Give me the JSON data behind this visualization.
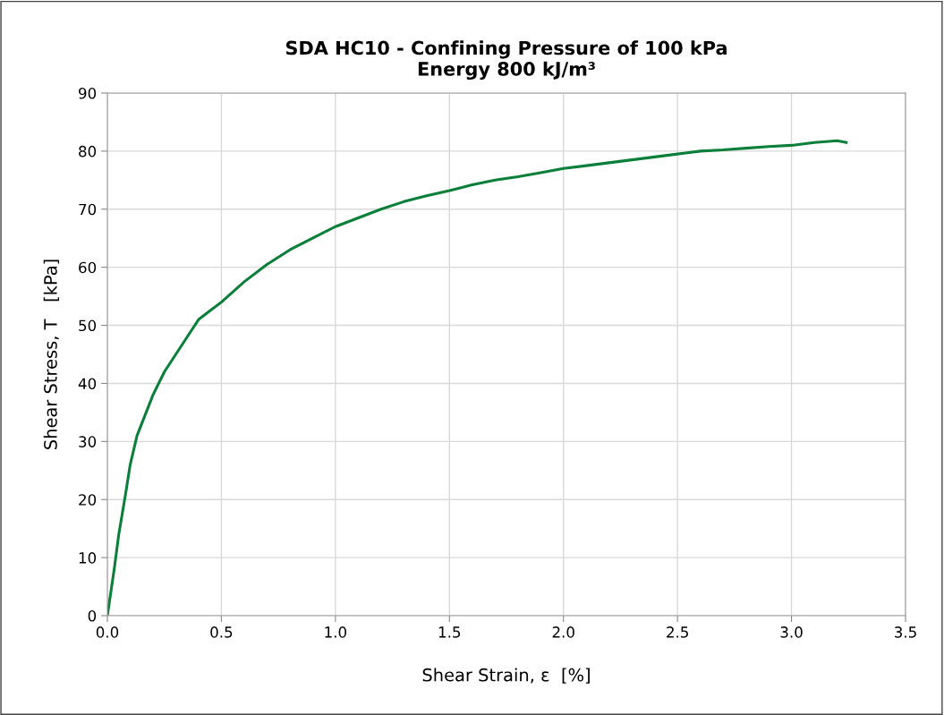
{
  "chart_data": {
    "type": "line",
    "title": "SDA HC10 - Confining Pressure of 100 kPa\nEnergy 800 kJ/m³",
    "xlabel": "Shear Strain, ε  [%]",
    "ylabel": "Shear Stress, T   [kPa]",
    "series": [
      {
        "color": "#0a7f3a",
        "x": [
          0,
          0.03,
          0.05,
          0.08,
          0.1,
          0.13,
          0.16,
          0.2,
          0.25,
          0.3,
          0.35,
          0.4,
          0.45,
          0.5,
          0.6,
          0.7,
          0.8,
          0.9,
          1.0,
          1.1,
          1.2,
          1.3,
          1.4,
          1.5,
          1.6,
          1.7,
          1.8,
          1.9,
          2.0,
          2.1,
          2.2,
          2.3,
          2.4,
          2.5,
          2.6,
          2.7,
          2.8,
          2.9,
          3.0,
          3.1,
          3.2,
          3.24
        ],
        "values": [
          0,
          8,
          14,
          21,
          26,
          31,
          34,
          38,
          42,
          45,
          48,
          51,
          52.5,
          54,
          57.5,
          60.5,
          63,
          65,
          67,
          68.5,
          70,
          71.3,
          72.3,
          73.2,
          74.2,
          75,
          75.6,
          76.3,
          77,
          77.5,
          78,
          78.5,
          79,
          79.5,
          80,
          80.2,
          80.5,
          80.8,
          81,
          81.5,
          81.8,
          81.5
        ]
      }
    ],
    "xlim": [
      0,
      3.5
    ],
    "xticks": [
      {
        "value": 0,
        "label": "0.0"
      },
      0.5,
      {
        "value": 1,
        "label": "1.0"
      },
      1.5,
      {
        "value": 2,
        "label": "2.0"
      },
      2.5,
      {
        "value": 3,
        "label": "3.0"
      },
      3.5
    ],
    "ylim": [
      0,
      90
    ],
    "yticks": [
      0,
      10,
      20,
      30,
      40,
      50,
      60,
      70,
      80,
      90
    ],
    "grid": true,
    "marker": "none",
    "line_style": "solid"
  }
}
